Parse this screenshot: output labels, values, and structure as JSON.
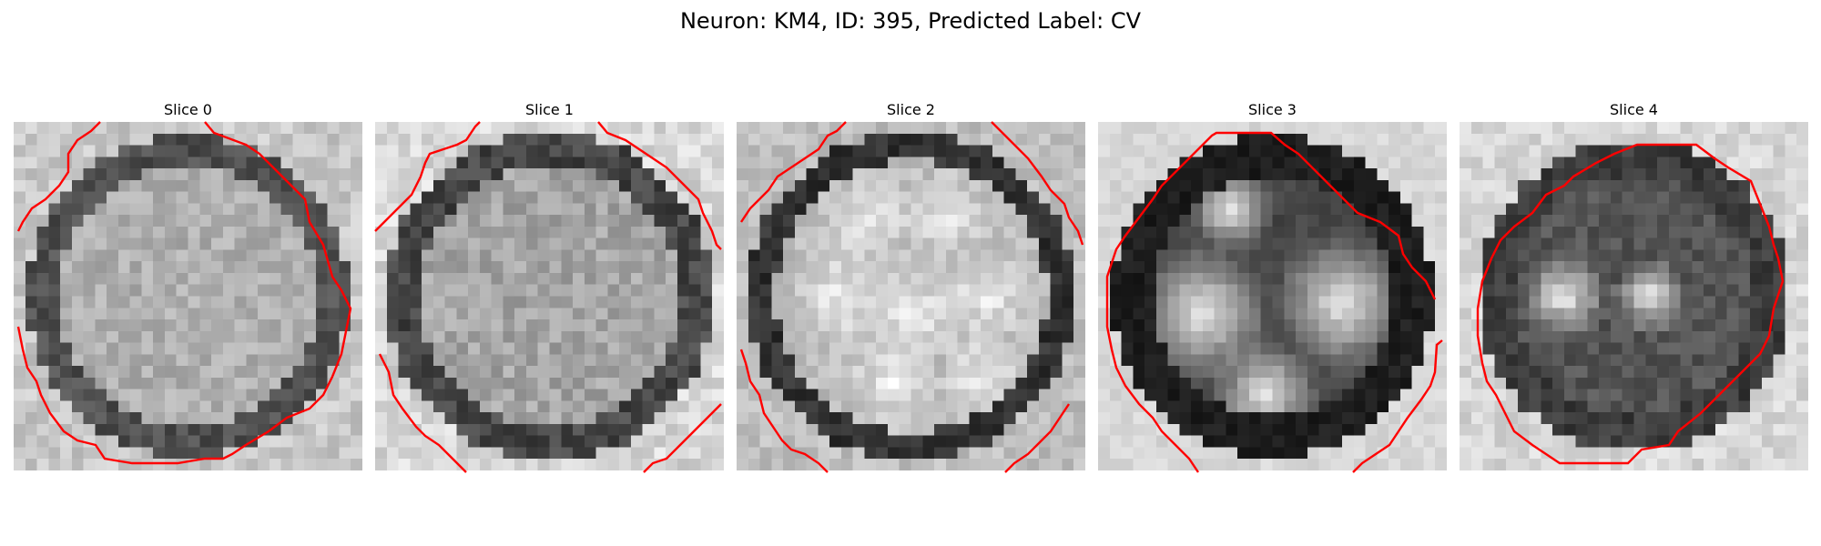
{
  "figure": {
    "title": "Neuron: KM4, ID: 395, Predicted Label: CV"
  },
  "panels": [
    {
      "title": "Slice 0"
    },
    {
      "title": "Slice 1"
    },
    {
      "title": "Slice 2"
    },
    {
      "title": "Slice 3"
    },
    {
      "title": "Slice 4"
    }
  ],
  "colors": {
    "contour": "#ff0000",
    "colormap": "grayscale"
  }
}
